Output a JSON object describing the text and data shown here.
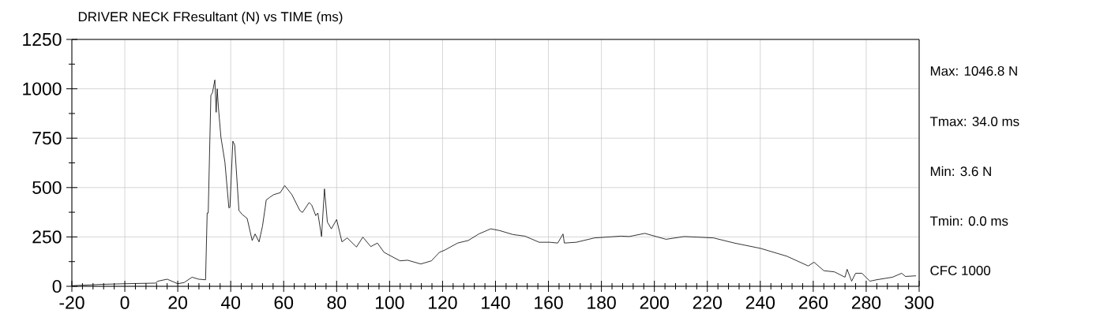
{
  "chart_data": {
    "type": "line",
    "title": "DRIVER NECK FResultant (N) vs TIME (ms)",
    "x": [
      -20,
      -8.4,
      0,
      11.5,
      12.5,
      16,
      20,
      22.4,
      25.4,
      27.9,
      30.5,
      31.1,
      31.5,
      32.5,
      33.1,
      34.0,
      34.5,
      34.9,
      35.3,
      36.3,
      37.8,
      39.3,
      39.7,
      40.8,
      41.5,
      43.1,
      44.3,
      46.2,
      48.1,
      49.2,
      50.7,
      52,
      53,
      53.4,
      54.7,
      56.2,
      58.7,
      60.4,
      63.1,
      66.1,
      67.1,
      69.6,
      70.6,
      72.1,
      72.9,
      74.3,
      75.4,
      76.5,
      78,
      80,
      82,
      84,
      87.5,
      89.9,
      92.9,
      95.4,
      97.9,
      103.9,
      106.8,
      111.8,
      115.8,
      118.8,
      120.8,
      125.7,
      129.7,
      133.7,
      138.2,
      141.6,
      146.6,
      151.1,
      156.5,
      160.5,
      163.5,
      165.5,
      166,
      170.5,
      177.4,
      187.4,
      190.5,
      196.4,
      204.4,
      211.3,
      222.3,
      230.2,
      240.1,
      250.1,
      258.1,
      260.3,
      264,
      268,
      272,
      272.8,
      274.5,
      276,
      278.4,
      281.4,
      283.9,
      289.9,
      293.4,
      294.8,
      298.8
    ],
    "values": [
      3,
      10,
      13,
      16,
      26,
      36,
      13,
      19,
      46,
      36,
      33,
      371,
      371,
      967,
      980,
      1045,
      881,
      1000,
      914,
      755,
      629,
      397,
      400,
      735,
      715,
      384,
      364,
      344,
      232,
      265,
      225,
      305,
      397,
      437,
      450,
      464,
      474,
      510,
      464,
      384,
      374,
      424,
      411,
      358,
      371,
      252,
      493,
      325,
      291,
      338,
      225,
      245,
      199,
      249,
      201,
      219,
      172,
      129,
      132,
      113,
      129,
      172,
      183,
      219,
      232,
      265,
      291,
      282,
      262,
      254,
      223,
      223,
      219,
      265,
      219,
      223,
      245,
      254,
      252,
      268,
      238,
      252,
      245,
      219,
      192,
      152,
      103,
      122,
      79,
      73,
      46,
      86,
      26,
      66,
      66,
      26,
      33,
      46,
      66,
      50,
      53
    ],
    "color": "#000000",
    "marker": "none",
    "xlim": [
      -20,
      300
    ],
    "ylim": [
      0,
      1250
    ],
    "xticks": [
      -20,
      0,
      20,
      40,
      60,
      80,
      100,
      120,
      140,
      160,
      180,
      200,
      220,
      240,
      260,
      280,
      300
    ],
    "yticks": [
      0,
      250,
      500,
      750,
      1000,
      1250
    ],
    "grid": true,
    "annotations": [
      "Max: 1046.8 N",
      "Tmax: 34.0 ms",
      "Min: 3.6 N",
      "Tmin: 0.0 ms",
      "CFC 1000"
    ]
  }
}
